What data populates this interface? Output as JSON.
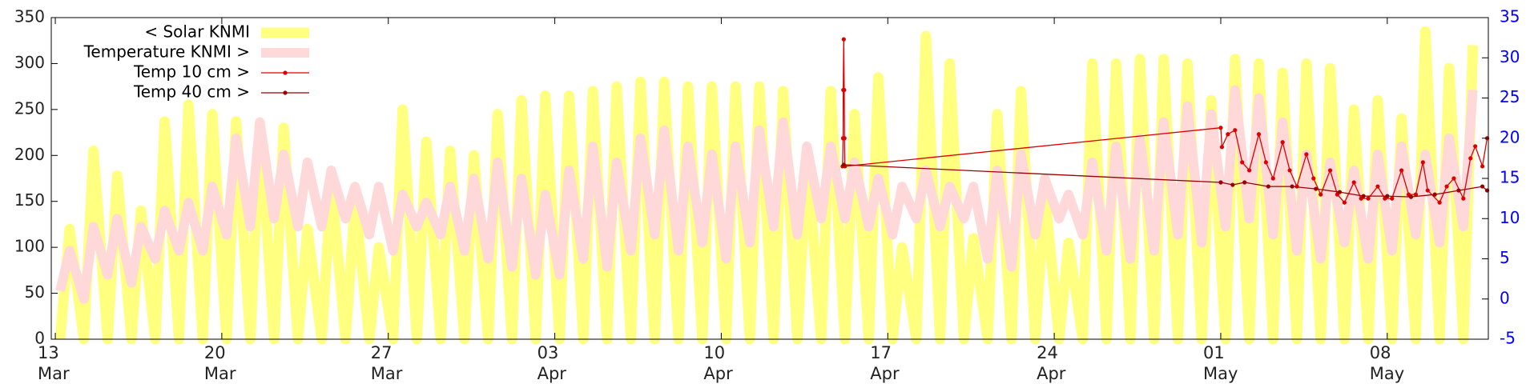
{
  "chart_data": {
    "type": "line",
    "xlim": [
      -0.17,
      60.25
    ],
    "xticks": [
      {
        "value": 0,
        "label": "13\nMar"
      },
      {
        "value": 7,
        "label": "20\nMar"
      },
      {
        "value": 14,
        "label": "27\nMar"
      },
      {
        "value": 21,
        "label": "03\nApr"
      },
      {
        "value": 28,
        "label": "10\nApr"
      },
      {
        "value": 35,
        "label": "17\nApr"
      },
      {
        "value": 42,
        "label": "24\nApr"
      },
      {
        "value": 49,
        "label": "01\nMay"
      },
      {
        "value": 56,
        "label": "08\nMay"
      }
    ],
    "ylim": [
      0,
      350
    ],
    "yticks": [
      0,
      50,
      100,
      150,
      200,
      250,
      300,
      350
    ],
    "y2lim": [
      -5,
      35
    ],
    "y2ticks": [
      -5,
      0,
      5,
      10,
      15,
      20,
      25,
      30,
      35
    ],
    "y2color": "#0000ff",
    "legend": "top-left",
    "x": [
      0.2,
      0.6,
      1.2,
      1.6,
      2.2,
      2.6,
      3.2,
      3.6,
      4.2,
      4.6,
      5.2,
      5.6,
      6.2,
      6.6,
      7.2,
      7.6,
      8.2,
      8.6,
      9.2,
      9.6,
      10.2,
      10.6,
      11.2,
      11.6,
      12.2,
      12.6,
      13.2,
      13.6,
      14.2,
      14.6,
      15.2,
      15.6,
      16.2,
      16.6,
      17.2,
      17.6,
      18.2,
      18.6,
      19.2,
      19.6,
      20.2,
      20.6,
      21.2,
      21.6,
      22.2,
      22.6,
      23.2,
      23.6,
      24.2,
      24.6,
      25.2,
      25.6,
      26.2,
      26.6,
      27.2,
      27.6,
      28.2,
      28.6,
      29.2,
      29.6,
      30.2,
      30.6,
      31.2,
      31.6,
      32.2,
      32.6,
      33.2,
      33.6,
      34.2,
      34.6,
      35.2,
      35.6,
      36.2,
      36.6,
      37.2,
      37.6,
      38.2,
      38.6,
      39.2,
      39.6,
      40.2,
      40.6,
      41.2,
      41.6,
      42.2,
      42.6,
      43.2,
      43.6,
      44.2,
      44.6,
      45.2,
      45.6,
      46.2,
      46.6,
      47.2,
      47.6,
      48.2,
      48.6,
      49.2,
      49.6,
      50.2,
      50.6,
      51.2,
      51.6,
      52.2,
      52.6,
      53.2,
      53.6,
      54.2,
      54.6,
      55.2,
      55.6,
      56.2,
      56.6,
      57.2,
      57.6,
      58.2,
      58.6,
      59.2,
      59.6
    ],
    "series": [
      {
        "name": "< Solar KNMI",
        "color": "#ffff80",
        "width": 13,
        "axis": "y",
        "marker": false,
        "values": [
          0,
          120,
          0,
          205,
          0,
          178,
          0,
          140,
          0,
          237,
          0,
          255,
          0,
          245,
          0,
          237,
          0,
          235,
          0,
          230,
          0,
          120,
          0,
          170,
          0,
          150,
          0,
          100,
          0,
          250,
          0,
          215,
          0,
          205,
          0,
          200,
          0,
          245,
          0,
          260,
          0,
          265,
          0,
          265,
          0,
          270,
          0,
          275,
          0,
          280,
          0,
          280,
          0,
          275,
          0,
          275,
          0,
          275,
          0,
          275,
          0,
          270,
          0,
          200,
          0,
          270,
          0,
          245,
          0,
          285,
          0,
          100,
          0,
          330,
          0,
          300,
          0,
          110,
          0,
          245,
          0,
          270,
          0,
          160,
          0,
          105,
          0,
          300,
          0,
          300,
          0,
          305,
          0,
          305,
          0,
          300,
          0,
          260,
          0,
          305,
          0,
          300,
          0,
          290,
          0,
          300,
          0,
          295,
          0,
          250,
          0,
          260,
          0,
          240,
          0,
          335,
          0,
          295,
          0,
          320
        ]
      },
      {
        "name": "Temperature KNMI >",
        "color": "#ffd9d9",
        "width": 12,
        "axis": "y2",
        "marker": false,
        "values": [
          1,
          6,
          0,
          9,
          3,
          10,
          2,
          9,
          5,
          11,
          6,
          12,
          6,
          14,
          8,
          20,
          9,
          22,
          10,
          18,
          9,
          17,
          9,
          16,
          10,
          14,
          8,
          14,
          6,
          13,
          9,
          12,
          8,
          14,
          6,
          15,
          5,
          17,
          4,
          15,
          3,
          13,
          3,
          16,
          5,
          19,
          4,
          17,
          6,
          20,
          8,
          21,
          6,
          19,
          7,
          18,
          5,
          19,
          7,
          21,
          9,
          22,
          8,
          19,
          10,
          19,
          10,
          17,
          9,
          15,
          8,
          14,
          10,
          16,
          9,
          14,
          10,
          14,
          5,
          16,
          4,
          18,
          8,
          15,
          10,
          13,
          8,
          17,
          6,
          19,
          5,
          20,
          6,
          22,
          8,
          24,
          7,
          23,
          9,
          26,
          10,
          25,
          8,
          22,
          6,
          18,
          5,
          17,
          7,
          16,
          5,
          18,
          6,
          19,
          8,
          18,
          7,
          20,
          9,
          26
        ]
      },
      {
        "name": "Temp 10 cm >",
        "color": "#dd0000",
        "width": 1.3,
        "axis": "y2",
        "marker": true,
        "x": [
          33.1,
          33.12,
          33.13,
          33.15,
          33.17,
          33.18,
          33.2,
          49.0,
          49.05,
          49.3,
          49.6,
          49.9,
          50.2,
          50.6,
          50.9,
          51.2,
          51.6,
          51.9,
          52.2,
          52.6,
          52.9,
          53.2,
          53.6,
          53.9,
          54.2,
          54.6,
          54.9,
          55.2,
          55.6,
          55.9,
          56.2,
          56.6,
          56.9,
          57.2,
          57.5,
          57.7,
          58.2,
          58.5,
          58.8,
          59.2,
          59.5,
          59.7,
          60.0,
          60.2
        ],
        "values": [
          16.5,
          20,
          26,
          32.3,
          26,
          20,
          16.5,
          21.3,
          18.9,
          20.5,
          21,
          17,
          16,
          20.5,
          17,
          15,
          19.5,
          16,
          14,
          18,
          15,
          13,
          16,
          13,
          12,
          14.5,
          12.5,
          12.5,
          14,
          12.5,
          12.5,
          16,
          13,
          13,
          17,
          13.5,
          12,
          14,
          15,
          12.5,
          17.5,
          19,
          16.5,
          20
        ]
      },
      {
        "name": "Temp 40 cm >",
        "color": "#990000",
        "width": 1.3,
        "axis": "y2",
        "marker": true,
        "x": [
          33.15,
          49.0,
          49.5,
          50.0,
          51.0,
          52.0,
          53.0,
          54.0,
          55.0,
          56.0,
          57.0,
          58.0,
          59.0,
          60.0,
          60.2
        ],
        "values": [
          16.7,
          14.5,
          14.2,
          14.5,
          14.0,
          14.0,
          13.7,
          13.3,
          12.8,
          12.8,
          12.7,
          13.0,
          13.5,
          14.0,
          13.5
        ]
      }
    ]
  }
}
